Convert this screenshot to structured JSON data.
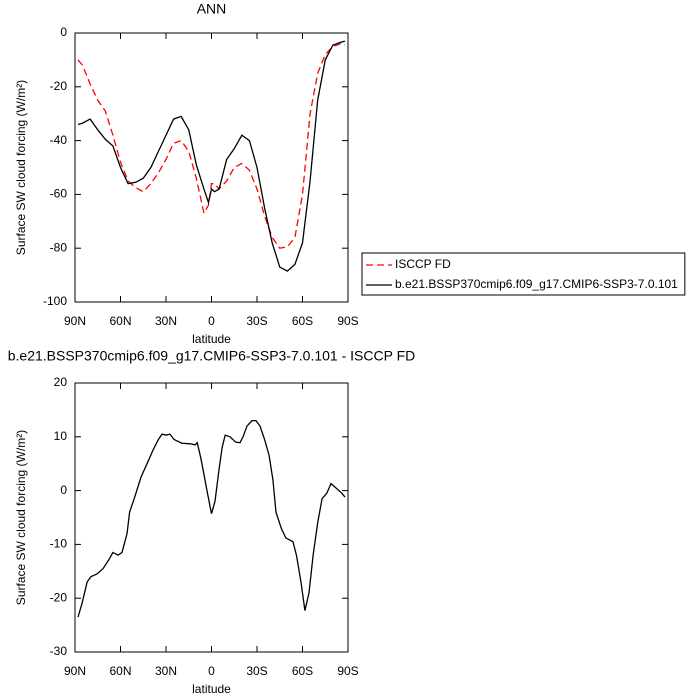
{
  "chart_data": [
    {
      "type": "line",
      "title": "ANN",
      "x_label": "latitude",
      "y_label": "Surface SW cloud forcing (W/m²)",
      "x": [
        88,
        85,
        80,
        75,
        70,
        65,
        60,
        55,
        50,
        45,
        40,
        35,
        30,
        25,
        20,
        15,
        10,
        5,
        2,
        0,
        -2,
        -5,
        -10,
        -15,
        -20,
        -25,
        -30,
        -35,
        -40,
        -45,
        -50,
        -55,
        -60,
        -65,
        -70,
        -75,
        -80,
        -85,
        -88
      ],
      "series": [
        {
          "name": "ISCCP FD",
          "color": "#ff0000",
          "dash": true,
          "values": [
            -10,
            -12,
            -19,
            -25,
            -29,
            -38,
            -48,
            -55,
            -57.5,
            -59,
            -56,
            -52,
            -47,
            -41,
            -40,
            -44,
            -54,
            -67,
            -64,
            -56,
            -56,
            -58,
            -55,
            -50,
            -48.5,
            -51,
            -58,
            -68,
            -76,
            -80,
            -79.5,
            -76,
            -60,
            -30,
            -15,
            -8,
            -5,
            -4,
            -4.5
          ]
        },
        {
          "name": "b.e21.BSSP370cmip6.f09_g17.CMIP6-SSP3-7.0.101",
          "color": "#000000",
          "dash": false,
          "values": [
            -34,
            -33.5,
            -32,
            -36,
            -39.5,
            -42,
            -50,
            -56,
            -55.5,
            -54,
            -50,
            -44,
            -38,
            -32,
            -31,
            -36,
            -49,
            -58,
            -63,
            -58,
            -59,
            -58,
            -47,
            -43,
            -38,
            -40,
            -50,
            -65,
            -78,
            -87,
            -88.5,
            -86,
            -78,
            -55,
            -25,
            -10,
            -4.5,
            -3.5,
            -3
          ]
        }
      ],
      "xlim": [
        90,
        -90
      ],
      "xticks": [
        {
          "value": 90,
          "label": "90N"
        },
        {
          "value": 60,
          "label": "60N"
        },
        {
          "value": 30,
          "label": "30N"
        },
        0,
        {
          "value": -30,
          "label": "30S"
        },
        {
          "value": -60,
          "label": "60S"
        },
        {
          "value": -90,
          "label": "90S"
        }
      ],
      "ylim": [
        -100,
        0
      ],
      "yticks": [
        -100,
        -80,
        -60,
        -40,
        -20,
        0
      ],
      "legend": "outside-right"
    },
    {
      "type": "line",
      "title": "b.e21.BSSP370cmip6.f09_g17.CMIP6-SSP3-7.0.101 - ISCCP FD",
      "x_label": "latitude",
      "y_label": "Surface SW cloud forcing (W/m²)",
      "x": [
        88,
        85.4,
        82,
        79.5,
        75.5,
        71.5,
        68,
        65,
        61.6,
        59,
        55.7,
        54,
        50.4,
        46.5,
        42.5,
        38.6,
        35,
        32.6,
        30,
        27.4,
        24.7,
        19.5,
        14,
        10.8,
        9.4,
        7,
        4.3,
        2.3,
        0,
        -2.3,
        -5,
        -7,
        -9,
        -12.2,
        -16,
        -18.8,
        -20.8,
        -23.4,
        -26.7,
        -29.3,
        -32,
        -35,
        -38,
        -40.5,
        -42.5,
        -46,
        -49,
        -53.7,
        -56,
        -59,
        -61.6,
        -64.3,
        -67,
        -70,
        -72.9,
        -76,
        -78.8,
        -82,
        -86,
        -88
      ],
      "series": [
        {
          "color": "#000000",
          "dash": false,
          "values": [
            -23.5,
            -21,
            -17,
            -16,
            -15.5,
            -14.5,
            -13,
            -11.5,
            -12,
            -11.5,
            -8,
            -4,
            -1,
            2.5,
            5,
            7.5,
            9.5,
            10.5,
            10.3,
            10.5,
            9.5,
            8.8,
            8.7,
            8.5,
            8.9,
            6,
            2,
            -1,
            -4.3,
            -2,
            4,
            8,
            10.3,
            10,
            9,
            8.9,
            10,
            12,
            13,
            13,
            12,
            9.5,
            6.5,
            2,
            -4,
            -7,
            -8.8,
            -9.5,
            -12,
            -17,
            -22.3,
            -19,
            -12,
            -6,
            -1.5,
            -0.5,
            1.3,
            0.5,
            -0.5,
            -1.2
          ]
        }
      ],
      "xlim": [
        90,
        -90
      ],
      "xticks": [
        {
          "value": 90,
          "label": "90N"
        },
        {
          "value": 60,
          "label": "60N"
        },
        {
          "value": 30,
          "label": "30N"
        },
        0,
        {
          "value": -30,
          "label": "30S"
        },
        {
          "value": -60,
          "label": "60S"
        },
        {
          "value": -90,
          "label": "90S"
        }
      ],
      "ylim": [
        -30,
        20
      ],
      "yticks": [
        -30,
        -20,
        -10,
        0,
        10,
        20
      ]
    }
  ]
}
